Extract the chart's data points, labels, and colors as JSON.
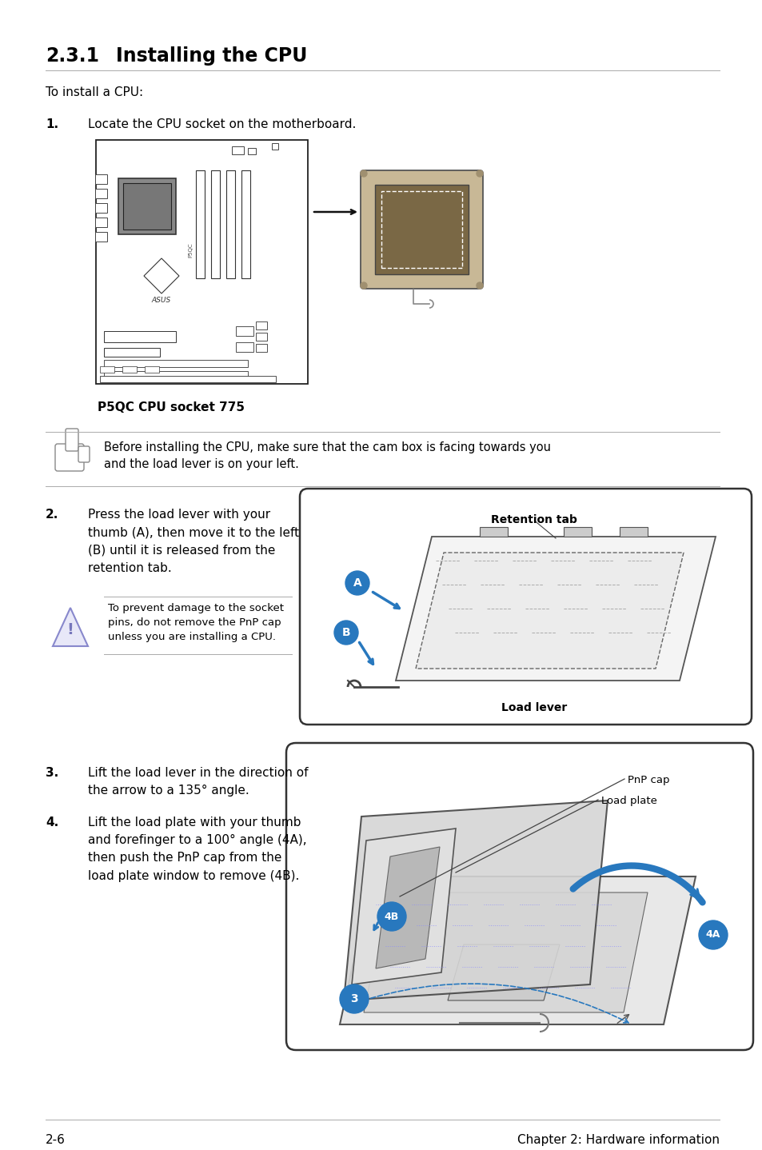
{
  "background_color": "#ffffff",
  "title_section": "2.3.1     Installing the CPU",
  "subtitle": "To install a CPU:",
  "step1_label": "1.",
  "step1_text": "Locate the CPU socket on the motherboard.",
  "motherboard_caption": "P5QC CPU socket 775",
  "note_text": "Before installing the CPU, make sure that the cam box is facing towards you\nand the load lever is on your left.",
  "step2_label": "2.",
  "step2_text": "Press the load lever with your\nthumb (A), then move it to the left\n(B) until it is released from the\nretention tab.",
  "warning_text": "To prevent damage to the socket\npins, do not remove the PnP cap\nunless you are installing a CPU.",
  "diagram2_title": "Retention tab",
  "diagram2_bottom": "Load lever",
  "step3_label": "3.",
  "step3_text": "Lift the load lever in the direction of\nthe arrow to a 135° angle.",
  "step4_label": "4.",
  "step4_text": "Lift the load plate with your thumb\nand forefinger to a 100° angle (4A),\nthen push the PnP cap from the\nload plate window to remove (4B).",
  "diagram3_pnp": "PnP cap",
  "diagram3_plate": "Load plate",
  "footer_left": "2-6",
  "footer_right": "Chapter 2: Hardware information",
  "accent_color": "#2878be",
  "text_color": "#000000",
  "gray_line": "#aaaaaa",
  "border_color": "#333333"
}
